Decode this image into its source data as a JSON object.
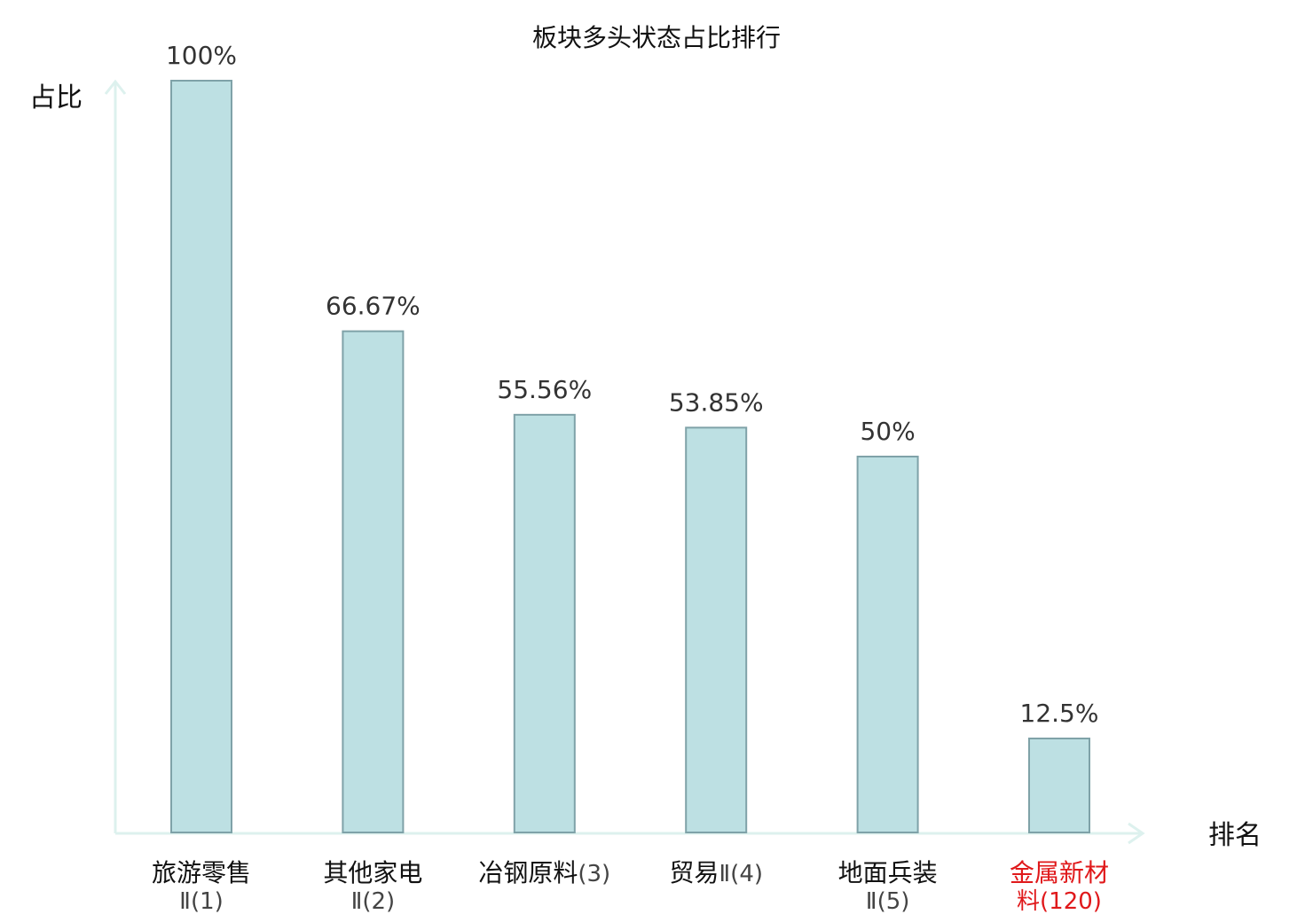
{
  "chart_data": {
    "type": "bar",
    "title": "板块多头状态占比排行",
    "ylabel": "占比",
    "xlabel": "排名",
    "ylim": [
      0,
      100
    ],
    "grid": false,
    "categories": [
      {
        "name": "旅游零售",
        "rank": "Ⅱ(1)",
        "value": 100,
        "label": "100%",
        "highlight": false
      },
      {
        "name": "其他家电",
        "rank": "Ⅱ(2)",
        "value": 66.67,
        "label": "66.67%",
        "highlight": false
      },
      {
        "name": "冶钢原料",
        "rank": "(3)",
        "value": 55.56,
        "label": "55.56%",
        "highlight": false
      },
      {
        "name": "贸易",
        "rank": "Ⅱ(4)",
        "value": 53.85,
        "label": "53.85%",
        "highlight": false
      },
      {
        "name": "地面兵装",
        "rank": "Ⅱ(5)",
        "value": 50,
        "label": "50%",
        "highlight": false
      },
      {
        "name": "金属新材",
        "rank": "料(120)",
        "value": 12.5,
        "label": "12.5%",
        "highlight": true
      }
    ],
    "colors": {
      "bar_fill": "#bde0e3",
      "bar_stroke": "#7fa2a8",
      "axis": "#ddf1ee",
      "highlight_text": "#e0191b",
      "label_text": "#111111",
      "rank_text": "#444444"
    }
  }
}
